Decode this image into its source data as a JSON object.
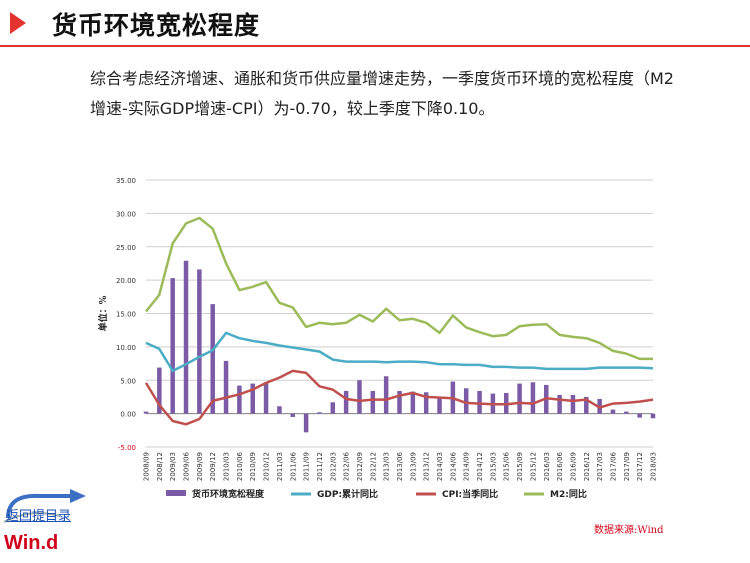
{
  "header": {
    "title": "货币环境宽松程度",
    "description": "综合考虑经济增速、通胀和货币供应量增速走势，一季度货币环境的宽松程度（M2增速-实际GDP增速-CPI）为-0.70，较上季度下降0.10。"
  },
  "footer": {
    "source": "数据来源:Wind",
    "back_link": "返回提目录",
    "logo_text": "Win.d"
  },
  "colors": {
    "accent": "#e3342f",
    "bar": "#7b5ba6",
    "gdp": "#4bacc6",
    "cpi": "#c0504d",
    "m2": "#9bbb59"
  },
  "chart_data": {
    "type": "bar",
    "ylabel": "单位：%",
    "ylim": [
      -5,
      35
    ],
    "yticks": [
      "-5.00",
      "0.00",
      "5.00",
      "10.00",
      "15.00",
      "20.00",
      "25.00",
      "30.00",
      "35.00"
    ],
    "ytick_values": [
      -5,
      0,
      5,
      10,
      15,
      20,
      25,
      30,
      35
    ],
    "grid": true,
    "legend_position": "bottom",
    "categories": [
      "2008/09",
      "2008/12",
      "2009/03",
      "2009/06",
      "2009/09",
      "2009/12",
      "2010/03",
      "2010/06",
      "2010/09",
      "2010/12",
      "2011/03",
      "2011/06",
      "2011/09",
      "2011/12",
      "2012/03",
      "2012/06",
      "2012/09",
      "2012/12",
      "2013/03",
      "2013/06",
      "2013/09",
      "2013/12",
      "2014/03",
      "2014/06",
      "2014/09",
      "2014/12",
      "2015/03",
      "2015/06",
      "2015/09",
      "2015/12",
      "2016/03",
      "2016/06",
      "2016/09",
      "2016/12",
      "2017/03",
      "2017/06",
      "2017/09",
      "2017/12",
      "2018/03"
    ],
    "series": [
      {
        "name": "货币环境宽松程度",
        "type": "bar",
        "color": "#7b5ba6",
        "values": [
          0.3,
          6.9,
          20.3,
          22.9,
          21.6,
          16.4,
          7.9,
          4.2,
          4.5,
          4.7,
          1.1,
          -0.5,
          -2.8,
          0.2,
          1.7,
          3.4,
          5.0,
          3.4,
          5.6,
          3.4,
          3.3,
          3.2,
          2.5,
          4.8,
          3.8,
          3.4,
          3.0,
          3.1,
          4.5,
          4.7,
          4.3,
          2.8,
          2.8,
          2.5,
          2.2,
          0.6,
          0.3,
          -0.6,
          -0.7
        ]
      },
      {
        "name": "GDP:累计同比",
        "type": "line",
        "color": "#4bacc6",
        "values": [
          10.6,
          9.7,
          6.4,
          7.4,
          8.5,
          9.5,
          12.1,
          11.3,
          10.9,
          10.6,
          10.2,
          9.9,
          9.6,
          9.3,
          8.1,
          7.8,
          7.8,
          7.8,
          7.7,
          7.8,
          7.8,
          7.7,
          7.4,
          7.4,
          7.3,
          7.3,
          7.0,
          7.0,
          6.9,
          6.9,
          6.7,
          6.7,
          6.7,
          6.7,
          6.9,
          6.9,
          6.9,
          6.9,
          6.8
        ]
      },
      {
        "name": "CPI:当季同比",
        "type": "line",
        "color": "#c0504d",
        "values": [
          4.6,
          1.3,
          -1.1,
          -1.6,
          -0.8,
          1.9,
          2.4,
          2.9,
          3.6,
          4.6,
          5.4,
          6.4,
          6.1,
          4.1,
          3.6,
          2.2,
          1.9,
          2.1,
          2.1,
          2.7,
          3.1,
          2.5,
          2.4,
          2.3,
          1.6,
          1.5,
          1.4,
          1.4,
          1.6,
          1.5,
          2.3,
          2.1,
          1.9,
          2.1,
          0.9,
          1.5,
          1.6,
          1.8,
          2.1
        ]
      },
      {
        "name": "M2:同比",
        "type": "line",
        "color": "#9bbb59",
        "values": [
          15.3,
          17.8,
          25.5,
          28.5,
          29.3,
          27.7,
          22.5,
          18.5,
          19.0,
          19.7,
          16.6,
          15.9,
          13.0,
          13.6,
          13.4,
          13.6,
          14.8,
          13.8,
          15.7,
          14.0,
          14.2,
          13.6,
          12.1,
          14.7,
          12.9,
          12.2,
          11.6,
          11.8,
          13.1,
          13.3,
          13.4,
          11.8,
          11.5,
          11.3,
          10.6,
          9.4,
          9.0,
          8.2,
          8.2
        ]
      }
    ]
  }
}
